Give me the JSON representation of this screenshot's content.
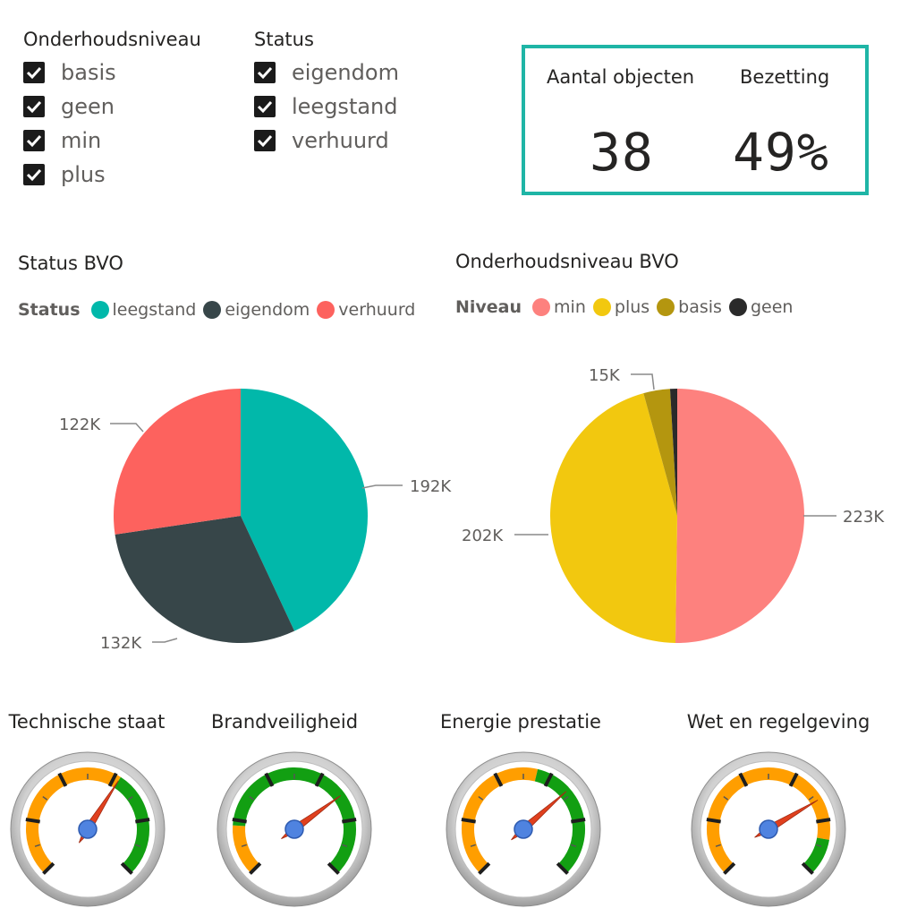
{
  "slicers": {
    "onderhoud": {
      "title": "Onderhoudsniveau",
      "options": [
        "basis",
        "geen",
        "min",
        "plus"
      ]
    },
    "status": {
      "title": "Status",
      "options": [
        "eigendom",
        "leegstand",
        "verhuurd"
      ]
    }
  },
  "kpis": {
    "objects": {
      "label": "Aantal objecten",
      "value": "38"
    },
    "occupancy": {
      "label": "Bezetting",
      "value": "49%"
    }
  },
  "pie_status": {
    "title": "Status BVO",
    "legend_title": "Status",
    "legend": [
      {
        "name": "leegstand",
        "color": "#01b8aa"
      },
      {
        "name": "eigendom",
        "color": "#374649"
      },
      {
        "name": "verhuurd",
        "color": "#fd625e"
      }
    ],
    "labels": {
      "leegstand": "192K",
      "eigendom": "132K",
      "verhuurd": "122K"
    }
  },
  "pie_niveau": {
    "title": "Onderhoudsniveau BVO",
    "legend_title": "Niveau",
    "legend": [
      {
        "name": "min",
        "color": "#fd817e"
      },
      {
        "name": "plus",
        "color": "#f2c80f"
      },
      {
        "name": "basis",
        "color": "#b4960f"
      },
      {
        "name": "geen",
        "color": "#2a2a2a"
      }
    ],
    "labels": {
      "min": "223K",
      "plus": "202K",
      "basis": "15K"
    }
  },
  "chart_data": [
    {
      "type": "pie",
      "title": "Status BVO",
      "categories": [
        "leegstand",
        "eigendom",
        "verhuurd"
      ],
      "values": [
        192000,
        132000,
        122000
      ],
      "legend": "top-left"
    },
    {
      "type": "pie",
      "title": "Onderhoudsniveau BVO",
      "categories": [
        "min",
        "plus",
        "basis",
        "geen"
      ],
      "values": [
        223000,
        202000,
        15000,
        4000
      ],
      "legend": "top-left"
    }
  ],
  "gauges": [
    {
      "title": "Technische staat",
      "needle": 0.62,
      "green_from": 0.62
    },
    {
      "title": "Brandveiligheid",
      "needle": 0.7,
      "green_from": 0.18
    },
    {
      "title": "Energie prestatie",
      "needle": 0.68,
      "green_from": 0.55
    },
    {
      "title": "Wet en regelgeving",
      "needle": 0.72,
      "green_from": 0.87
    }
  ],
  "gauge_colors": {
    "orange": "#ff9e00",
    "green": "#129f12",
    "needle": "#e0401e",
    "hub": "#4f83e0"
  }
}
